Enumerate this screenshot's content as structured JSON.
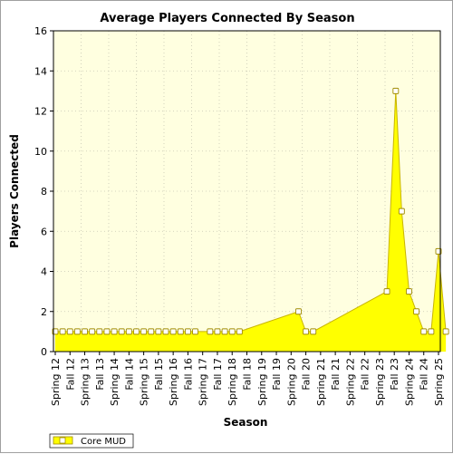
{
  "chart_data": {
    "type": "area",
    "title": "Average Players Connected By Season",
    "xlabel": "Season",
    "ylabel": "Players Connected",
    "ylim": [
      0,
      16
    ],
    "yticks": [
      0,
      2,
      4,
      6,
      8,
      10,
      12,
      14,
      16
    ],
    "grid": true,
    "legend_placement": "bottom-left",
    "categories": [
      "Spring 12",
      "Fall 12",
      "Spring 13",
      "Fall 13",
      "Spring 14",
      "Fall 14",
      "Spring 15",
      "Fall 15",
      "Spring 16",
      "Fall 16",
      "Spring 17",
      "Fall 17",
      "Spring 18",
      "Fall 18",
      "Spring 19",
      "Fall 19",
      "Spring 20",
      "Fall 20",
      "Spring 21",
      "Fall 21",
      "Spring 22",
      "Fall 22",
      "Spring 23",
      "Fall 23",
      "Spring 24",
      "Fall 24",
      "Spring 25"
    ],
    "series": [
      {
        "name": "Core MUD",
        "color": "#ffff00",
        "line_color": "#c8b400",
        "marker_fill": "#ffffff",
        "marker_stroke": "#a08c00",
        "points": [
          [
            0,
            1
          ],
          [
            0.5,
            1
          ],
          [
            1,
            1
          ],
          [
            1.5,
            1
          ],
          [
            2,
            1
          ],
          [
            2.5,
            1
          ],
          [
            3,
            1
          ],
          [
            3.5,
            1
          ],
          [
            4,
            1
          ],
          [
            4.5,
            1
          ],
          [
            5,
            1
          ],
          [
            5.5,
            1
          ],
          [
            6,
            1
          ],
          [
            6.5,
            1
          ],
          [
            7,
            1
          ],
          [
            7.5,
            1
          ],
          [
            8,
            1
          ],
          [
            8.5,
            1
          ],
          [
            9,
            1
          ],
          [
            9.5,
            1
          ],
          [
            10.5,
            1
          ],
          [
            11,
            1
          ],
          [
            11.5,
            1
          ],
          [
            12,
            1
          ],
          [
            12.5,
            1
          ],
          [
            16.5,
            2
          ],
          [
            17,
            1
          ],
          [
            17.5,
            1
          ],
          [
            22.5,
            3
          ],
          [
            23.1,
            13
          ],
          [
            23.5,
            7
          ],
          [
            24,
            3
          ],
          [
            24.5,
            2
          ],
          [
            25,
            1
          ],
          [
            25.5,
            1
          ],
          [
            26,
            5
          ],
          [
            26.5,
            1
          ]
        ]
      }
    ]
  }
}
